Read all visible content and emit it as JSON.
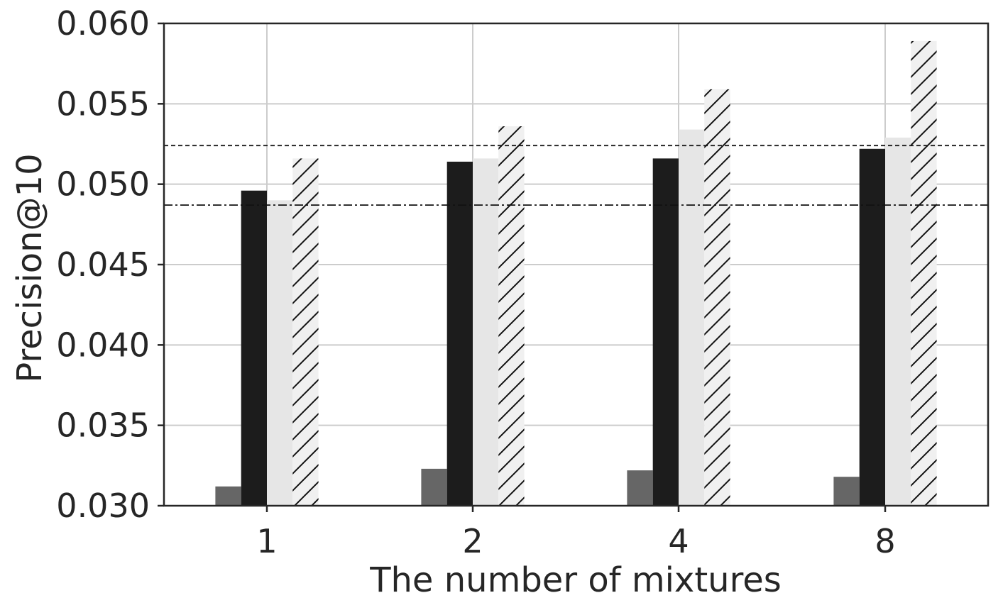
{
  "chart_data": {
    "type": "bar",
    "xlabel": "The number of mixtures",
    "ylabel": "Precision@10",
    "categories": [
      "1",
      "2",
      "4",
      "8"
    ],
    "ylim": [
      0.03,
      0.06
    ],
    "yticks": [
      "0.030",
      "0.035",
      "0.040",
      "0.045",
      "0.050",
      "0.055",
      "0.060"
    ],
    "grid": true,
    "series": [
      {
        "color": "#666666",
        "hatch": false,
        "values": [
          0.0312,
          0.0323,
          0.0322,
          0.0318
        ]
      },
      {
        "color": "#1c1c1c",
        "hatch": false,
        "values": [
          0.0496,
          0.0514,
          0.0516,
          0.0522
        ]
      },
      {
        "color": "#e6e6e6",
        "hatch": false,
        "values": [
          0.049,
          0.0516,
          0.0534,
          0.0529
        ]
      },
      {
        "color": "#f0f0f0",
        "hatch": true,
        "values": [
          0.0516,
          0.0536,
          0.0559,
          0.0589
        ]
      }
    ],
    "reference_lines": [
      {
        "style": "dashed",
        "value": 0.0524
      },
      {
        "style": "dashdot",
        "value": 0.0487
      }
    ]
  }
}
